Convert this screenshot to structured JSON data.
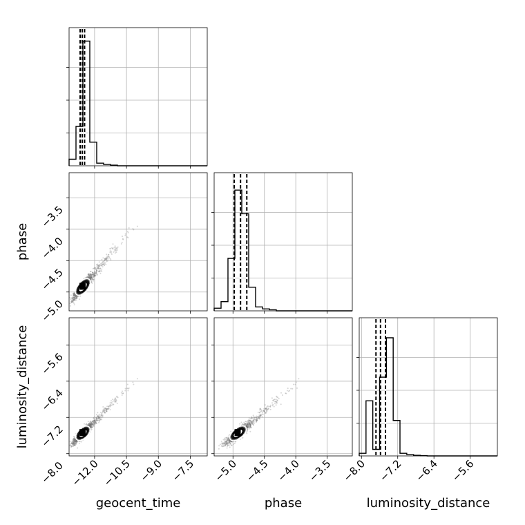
{
  "chart_data": {
    "type": "corner",
    "parameters": [
      "geocent_time",
      "phase",
      "luminosity_distance"
    ],
    "ranges": {
      "geocent_time": [
        -13.2,
        -6.7
      ],
      "phase": [
        -5.3,
        -3.1
      ],
      "luminosity_distance": [
        -8.05,
        -5.0
      ]
    },
    "ticks": {
      "geocent_time": [
        -12.0,
        -10.5,
        -9.0,
        -7.5
      ],
      "phase": [
        -5.0,
        -4.5,
        -4.0,
        -3.5
      ],
      "luminosity_distance": [
        -8.0,
        -7.2,
        -6.4,
        -5.6
      ]
    },
    "tick_labels": {
      "geocent_time": [
        "−12.0",
        "−10.5",
        "−9.0",
        "−7.5"
      ],
      "phase": [
        "−5.0",
        "−4.5",
        "−4.0",
        "−3.5"
      ],
      "luminosity_distance": [
        "−8.0",
        "−7.2",
        "−6.4",
        "−5.6"
      ]
    },
    "histograms": {
      "geocent_time": {
        "edges": [
          -13.2,
          -12.875,
          -12.55,
          -12.225,
          -11.9,
          -11.575,
          -11.25,
          -10.925,
          -10.6
        ],
        "counts": [
          0.05,
          0.3,
          0.95,
          0.18,
          0.02,
          0.01,
          0.005,
          0.0
        ],
        "quantiles": [
          -12.68,
          -12.58,
          -12.47
        ]
      },
      "phase": {
        "edges": [
          -5.3,
          -5.19,
          -5.08,
          -4.97,
          -4.86,
          -4.75,
          -4.64,
          -4.53,
          -4.42,
          -4.31,
          -4.2
        ],
        "counts": [
          0.02,
          0.07,
          0.4,
          0.92,
          0.74,
          0.18,
          0.03,
          0.015,
          0.008,
          0.0
        ],
        "quantiles": [
          -4.98,
          -4.88,
          -4.78
        ]
      },
      "luminosity_distance": {
        "edges": [
          -8.05,
          -7.9,
          -7.75,
          -7.6,
          -7.45,
          -7.3,
          -7.15,
          -7.0,
          -6.85,
          -6.7,
          -6.55,
          -6.4
        ],
        "counts": [
          0.02,
          0.42,
          0.05,
          0.6,
          0.9,
          0.27,
          0.02,
          0.01,
          0.005,
          0.002,
          0.0
        ],
        "quantiles": [
          -7.68,
          -7.58,
          -7.47
        ]
      }
    },
    "scatter": {
      "center": {
        "geocent_time": -12.55,
        "phase": -4.92,
        "luminosity_distance": -7.55
      },
      "spread": {
        "geocent_time": 0.22,
        "phase": 0.09,
        "luminosity_distance": 0.1
      },
      "trend_slope": {
        "phase_vs_geocent_time": 0.33,
        "luminosity_distance_vs_geocent_time": 0.48,
        "luminosity_distance_vs_phase": 1.45
      },
      "contour_levels": 2,
      "point_color": "#6b6b6b",
      "density_color": "#000000"
    },
    "grid": true,
    "xlabel": [
      "geocent_time",
      "phase",
      "luminosity_distance"
    ],
    "ylabel": [
      "",
      "phase",
      "luminosity_distance"
    ]
  }
}
